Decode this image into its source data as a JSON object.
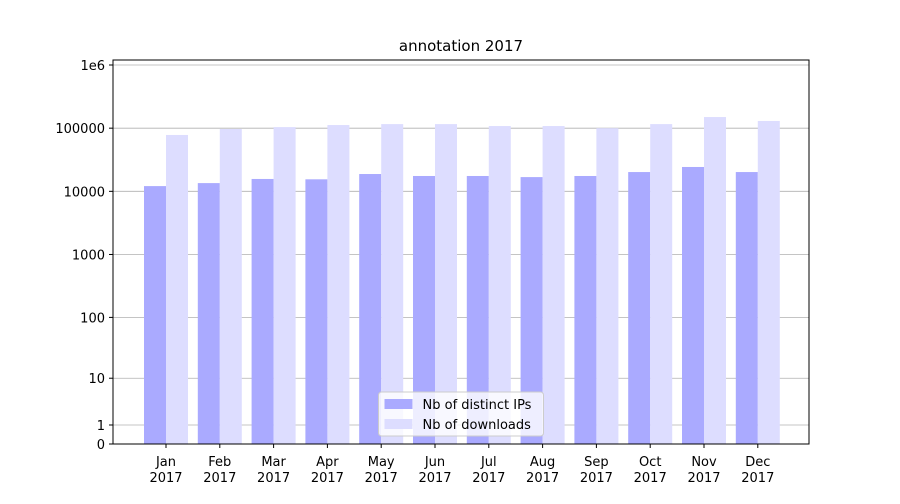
{
  "chart_data": {
    "type": "bar",
    "title": "annotation 2017",
    "categories": [
      "Jan\n2017",
      "Feb\n2017",
      "Mar\n2017",
      "Apr\n2017",
      "May\n2017",
      "Jun\n2017",
      "Jul\n2017",
      "Aug\n2017",
      "Sep\n2017",
      "Oct\n2017",
      "Nov\n2017",
      "Dec\n2017"
    ],
    "series": [
      {
        "name": "Nb of distinct IPs",
        "color": "#aaaaff",
        "values": [
          12100,
          13500,
          15700,
          15500,
          18800,
          17500,
          17500,
          16800,
          17500,
          20200,
          24300,
          20200
        ]
      },
      {
        "name": "Nb of downloads",
        "color": "#ddddff",
        "values": [
          78000,
          97000,
          104000,
          112000,
          116000,
          116000,
          108000,
          108000,
          100000,
          116000,
          150000,
          130000
        ]
      }
    ],
    "yscale": "log10(x+1)",
    "ylim": [
      0,
      1200000
    ],
    "yticks": [
      0,
      1,
      10,
      100,
      1000,
      10000,
      100000,
      {
        "value": 1000000,
        "label": "1e6"
      }
    ],
    "grid": true,
    "legend": "lower center"
  }
}
